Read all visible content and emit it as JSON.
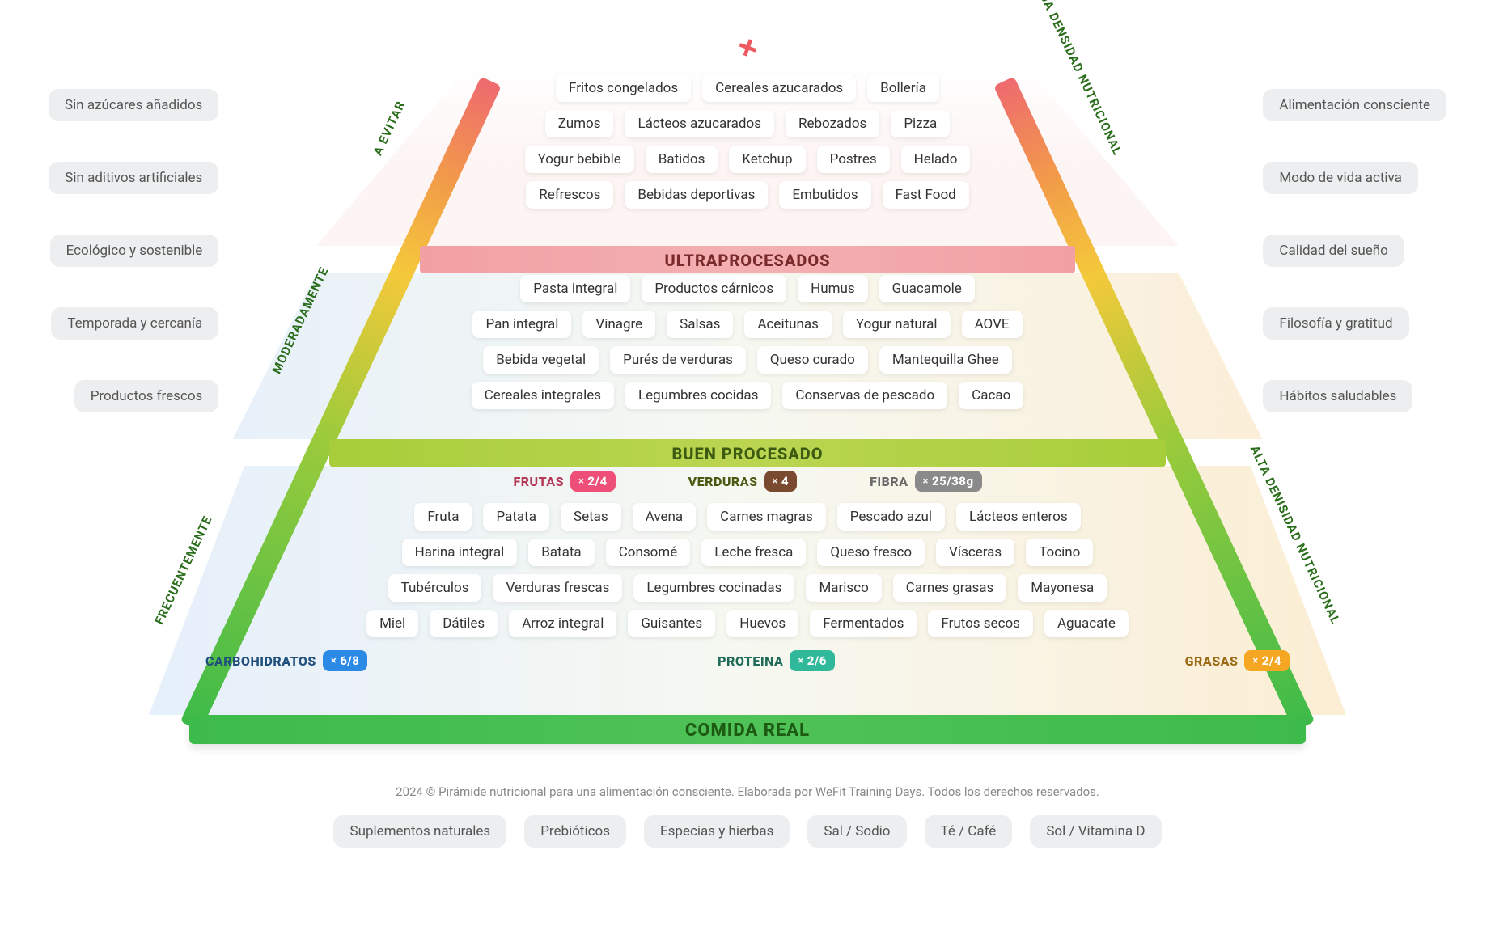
{
  "colors": {
    "green": "#3dbb4a",
    "lime": "#a7ce3a",
    "pink": "#f2a0a3",
    "badge_pink": "#ee4f78",
    "badge_brown": "#7a4a30",
    "badge_grey": "#8a8a8a",
    "badge_blue": "#2b8ae6",
    "badge_teal": "#2fb89a",
    "badge_orange": "#f5a623",
    "bubble_bg": "#eceeef",
    "text_muted": "#888888"
  },
  "apex_icon": "plus-icon",
  "side_labels": {
    "left": [
      "FRECUENTEMENTE",
      "MODERADAMENTE",
      "A EVITAR"
    ],
    "right": [
      "ALTA DENISIDAD NUTRICIONAL",
      "BAJA DENSIDAD NUTRICIONAL"
    ]
  },
  "bands": {
    "base": "COMIDA REAL",
    "mid": "BUEN PROCESADO",
    "top": "ULTRAPROCESADOS"
  },
  "macros_top": [
    {
      "label": "FRUTAS",
      "badge": "2/4",
      "color": "#ee4f78",
      "label_color": "#b53a58"
    },
    {
      "label": "VERDURAS",
      "badge": "4",
      "color": "#7a4a30",
      "label_color": "#4a5a12"
    },
    {
      "label": "FIBRA",
      "badge": "25/38g",
      "color": "#8a8a8a",
      "label_color": "#6a6a6a"
    }
  ],
  "macros_bottom": [
    {
      "label": "CARBOHIDRATOS",
      "badge": "6/8",
      "color": "#2b8ae6",
      "label_color": "#1f4f7a"
    },
    {
      "label": "PROTEINA",
      "badge": "2/6",
      "color": "#2fb89a",
      "label_color": "#1f6a58"
    },
    {
      "label": "GRASAS",
      "badge": "2/4",
      "color": "#f5a623",
      "label_color": "#9a6a14"
    }
  ],
  "tier_bottom_rows": [
    [
      "Fruta",
      "Patata",
      "Setas",
      "Avena",
      "Carnes magras",
      "Pescado azul",
      "Lácteos enteros"
    ],
    [
      "Harina integral",
      "Batata",
      "Consomé",
      "Leche fresca",
      "Queso fresco",
      "Vísceras",
      "Tocino"
    ],
    [
      "Tubérculos",
      "Verduras frescas",
      "Legumbres cocinadas",
      "Marisco",
      "Carnes grasas",
      "Mayonesa"
    ],
    [
      "Miel",
      "Dátiles",
      "Arroz integral",
      "Guisantes",
      "Huevos",
      "Fermentados",
      "Frutos secos",
      "Aguacate"
    ]
  ],
  "tier_middle_rows": [
    [
      "Pasta integral",
      "Productos cárnicos",
      "Humus",
      "Guacamole"
    ],
    [
      "Pan integral",
      "Vinagre",
      "Salsas",
      "Aceitunas",
      "Yogur natural",
      "AOVE"
    ],
    [
      "Bebida vegetal",
      "Purés de verduras",
      "Queso curado",
      "Mantequilla Ghee"
    ],
    [
      "Cereales integrales",
      "Legumbres cocidas",
      "Conservas de pescado",
      "Cacao"
    ]
  ],
  "tier_top_rows": [
    [
      "Fritos congelados",
      "Cereales azucarados",
      "Bollería"
    ],
    [
      "Zumos",
      "Lácteos azucarados",
      "Rebozados",
      "Pizza"
    ],
    [
      "Yogur bebible",
      "Batidos",
      "Ketchup",
      "Postres",
      "Helado"
    ],
    [
      "Refrescos",
      "Bebidas deportivas",
      "Embutidos",
      "Fast Food"
    ]
  ],
  "left_bubbles": [
    "Sin azúcares añadidos",
    "Sin aditivos artificiales",
    "Ecológico y sostenible",
    "Temporada y cercanía",
    "Productos frescos"
  ],
  "right_bubbles": [
    "Alimentación consciente",
    "Modo de vida activa",
    "Calidad del sueño",
    "Filosofía y gratitud",
    "Hábitos saludables"
  ],
  "bottom_bubbles": [
    "Suplementos naturales",
    "Prebióticos",
    "Especias y hierbas",
    "Sal / Sodio",
    "Té / Café",
    "Sol / Vitamina D"
  ],
  "copyright": "2024 © Pirámide nutricional para una alimentación consciente. Elaborada por WeFit Training Days. Todos los derechos reservados."
}
